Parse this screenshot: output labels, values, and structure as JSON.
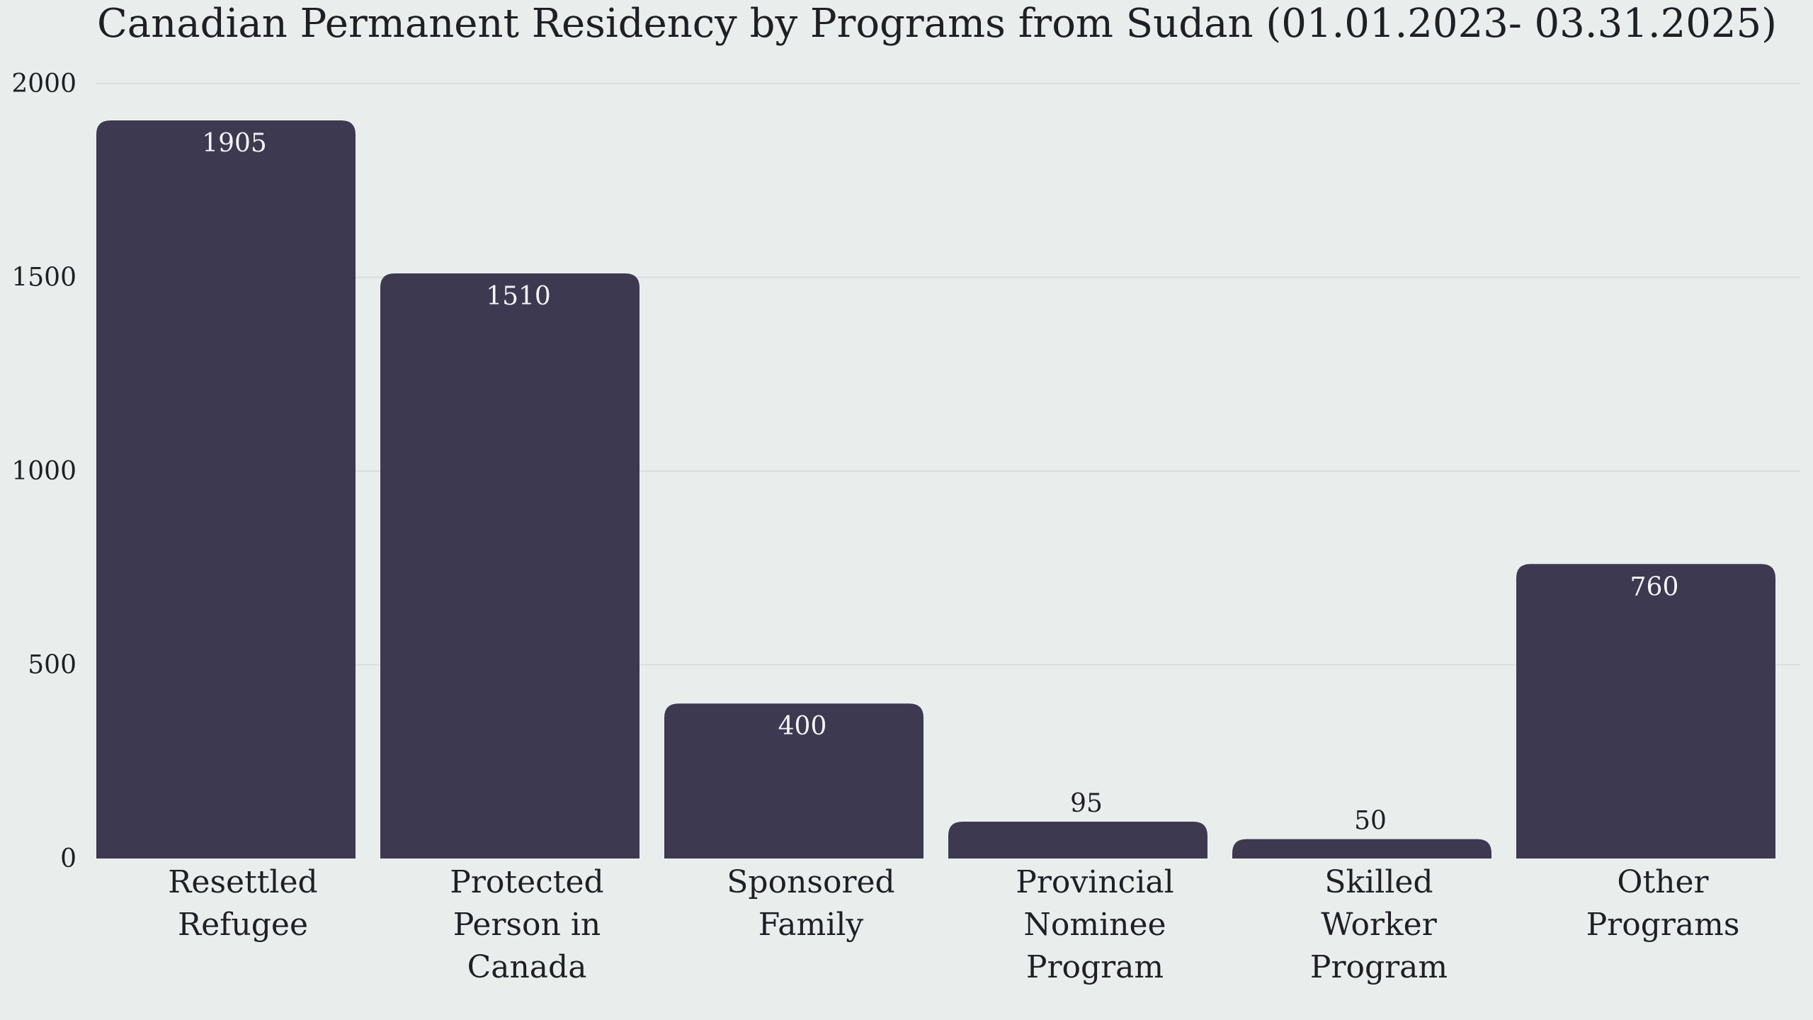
{
  "chart_data": {
    "type": "bar",
    "title": "Canadian Permanent Residency by Programs from Sudan (01.01.2023- 03.31.2025)",
    "categories": [
      [
        "Resettled",
        "Refugee"
      ],
      [
        "Protected",
        "Person in",
        "Canada"
      ],
      [
        "Sponsored",
        "Family"
      ],
      [
        "Provincial",
        "Nominee",
        "Program"
      ],
      [
        "Skilled",
        "Worker",
        "Program"
      ],
      [
        "Other",
        "Programs"
      ]
    ],
    "values": [
      1905,
      1510,
      400,
      95,
      50,
      760
    ],
    "data_labels": [
      "1905",
      "1510",
      "400",
      "95",
      "50",
      "760"
    ],
    "y_ticks": [
      0,
      500,
      1000,
      1500,
      2000
    ],
    "ylim": [
      0,
      2000
    ],
    "xlabel": "",
    "ylabel": "",
    "grid": true,
    "bar_color": "#3d3950",
    "background_color": "#e9eeed",
    "gridline_color": "#d9dedd"
  }
}
